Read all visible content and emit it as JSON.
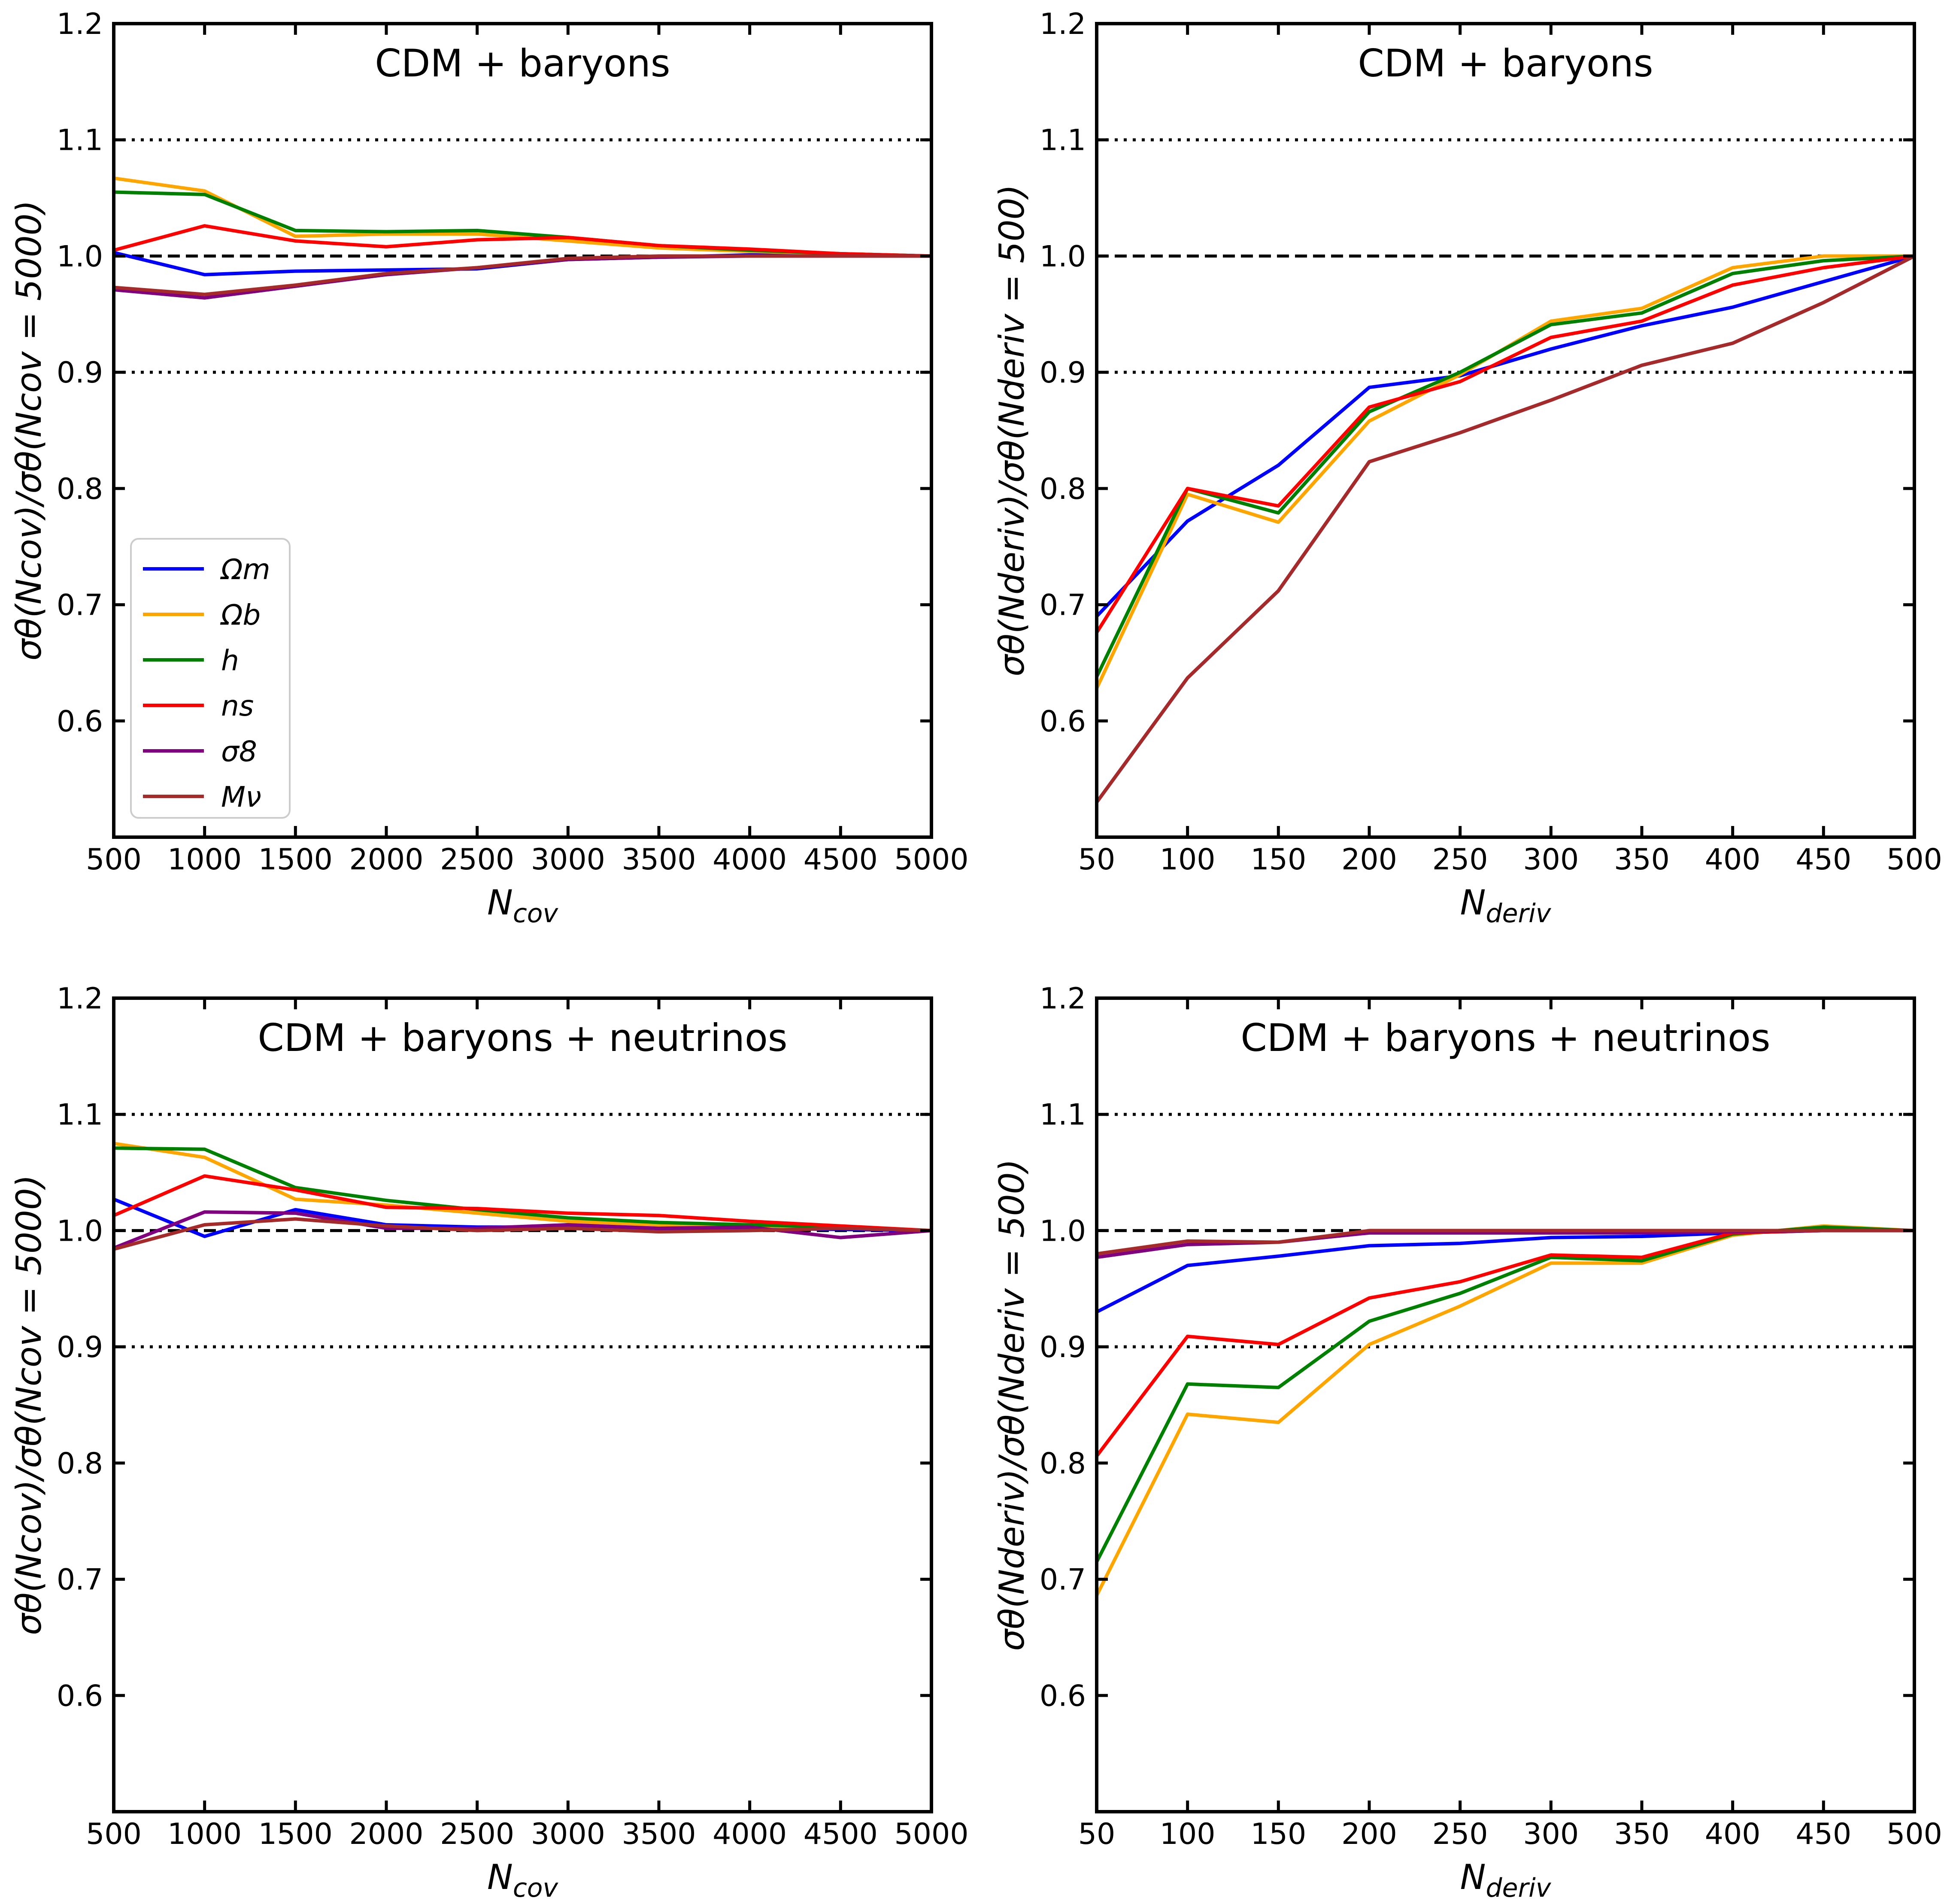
{
  "chart_data": [
    {
      "type": "line",
      "title": "CDM + baryons",
      "xlabel": "N_cov",
      "ylabel": "σθ(Ncov)/σθ(Ncov = 5000)",
      "xlabel_main": "N",
      "xlabel_sub": "cov",
      "ylabel_text": "σθ(Ncov)/σθ(Ncov = 5000)",
      "x": [
        500,
        1000,
        1500,
        2000,
        2500,
        3000,
        3500,
        4000,
        4500,
        5000
      ],
      "xlim": [
        500,
        5000
      ],
      "ylim": [
        0.5,
        1.2
      ],
      "xticks": [
        "500",
        "1000",
        "1500",
        "2000",
        "2500",
        "3000",
        "3500",
        "4000",
        "4500",
        "5000"
      ],
      "yticks": [
        "0.6",
        "0.7",
        "0.8",
        "0.9",
        "1.0",
        "1.1",
        "1.2"
      ],
      "reference_lines": {
        "dashed": 1.0,
        "dotted": [
          0.9,
          1.1
        ]
      },
      "legend": {
        "show": true,
        "position": "lower-left"
      },
      "series": [
        {
          "name": "Ωm",
          "color": "#0000ff",
          "values": [
            1.003,
            0.984,
            0.987,
            0.988,
            0.989,
            0.997,
            0.999,
            1.001,
            1.001,
            1.0
          ]
        },
        {
          "name": "Ωb",
          "color": "#ffa500",
          "values": [
            1.067,
            1.056,
            1.017,
            1.019,
            1.019,
            1.013,
            1.007,
            1.004,
            1.002,
            1.0
          ]
        },
        {
          "name": "h",
          "color": "#008000",
          "values": [
            1.055,
            1.053,
            1.022,
            1.021,
            1.022,
            1.016,
            1.009,
            1.005,
            1.002,
            1.0
          ]
        },
        {
          "name": "ns",
          "color": "#ff0000",
          "values": [
            1.005,
            1.026,
            1.013,
            1.008,
            1.014,
            1.016,
            1.009,
            1.006,
            1.002,
            1.0
          ]
        },
        {
          "name": "σ8",
          "color": "#800080",
          "values": [
            0.971,
            0.964,
            0.974,
            0.984,
            0.99,
            0.997,
            0.999,
            1.0,
            1.0,
            1.0
          ]
        },
        {
          "name": "Mν",
          "color": "#a52a2a",
          "values": [
            0.973,
            0.967,
            0.975,
            0.985,
            0.99,
            0.998,
            1.0,
            1.0,
            1.0,
            1.0
          ]
        }
      ]
    },
    {
      "type": "line",
      "title": "CDM + baryons",
      "xlabel": "N_deriv",
      "ylabel": "σθ(Nderiv)/σθ(Nderiv = 500)",
      "xlabel_main": "N",
      "xlabel_sub": "deriv",
      "ylabel_text": "σθ(Nderiv)/σθ(Nderiv = 500)",
      "x": [
        50,
        100,
        150,
        200,
        250,
        300,
        350,
        400,
        450,
        500
      ],
      "xlim": [
        50,
        500
      ],
      "ylim": [
        0.5,
        1.2
      ],
      "xticks": [
        "50",
        "100",
        "150",
        "200",
        "250",
        "300",
        "350",
        "400",
        "450",
        "500"
      ],
      "yticks": [
        "0.6",
        "0.7",
        "0.8",
        "0.9",
        "1.0",
        "1.1",
        "1.2"
      ],
      "reference_lines": {
        "dashed": 1.0,
        "dotted": [
          0.9,
          1.1
        ]
      },
      "legend": {
        "show": false
      },
      "series": [
        {
          "name": "Ωm",
          "color": "#0000ff",
          "values": [
            0.69,
            0.772,
            0.82,
            0.887,
            0.897,
            0.92,
            0.94,
            0.956,
            0.978,
            1.0
          ]
        },
        {
          "name": "Ωb",
          "color": "#ffa500",
          "values": [
            0.628,
            0.795,
            0.771,
            0.858,
            0.898,
            0.944,
            0.955,
            0.99,
            1.0,
            1.0
          ]
        },
        {
          "name": "h",
          "color": "#008000",
          "values": [
            0.638,
            0.8,
            0.779,
            0.866,
            0.9,
            0.941,
            0.951,
            0.985,
            0.996,
            1.0
          ]
        },
        {
          "name": "ns",
          "color": "#ff0000",
          "values": [
            0.676,
            0.8,
            0.785,
            0.87,
            0.892,
            0.93,
            0.944,
            0.975,
            0.99,
            1.0
          ]
        },
        {
          "name": "σ8",
          "color": "#800080",
          "values": [
            0.53,
            0.637,
            0.712,
            0.823,
            0.848,
            0.876,
            0.906,
            0.925,
            0.96,
            1.0
          ]
        },
        {
          "name": "Mν",
          "color": "#a52a2a",
          "values": [
            0.53,
            0.637,
            0.712,
            0.823,
            0.848,
            0.876,
            0.906,
            0.925,
            0.96,
            1.0
          ]
        }
      ]
    },
    {
      "type": "line",
      "title": "CDM + baryons + neutrinos",
      "xlabel": "N_cov",
      "ylabel": "σθ(Ncov)/σθ(Ncov = 5000)",
      "xlabel_main": "N",
      "xlabel_sub": "cov",
      "ylabel_text": "σθ(Ncov)/σθ(Ncov = 5000)",
      "x": [
        500,
        1000,
        1500,
        2000,
        2500,
        3000,
        3500,
        4000,
        4500,
        5000
      ],
      "xlim": [
        500,
        5000
      ],
      "ylim": [
        0.5,
        1.2
      ],
      "xticks": [
        "500",
        "1000",
        "1500",
        "2000",
        "2500",
        "3000",
        "3500",
        "4000",
        "4500",
        "5000"
      ],
      "yticks": [
        "0.6",
        "0.7",
        "0.8",
        "0.9",
        "1.0",
        "1.1",
        "1.2"
      ],
      "reference_lines": {
        "dashed": 1.0,
        "dotted": [
          0.9,
          1.1
        ]
      },
      "legend": {
        "show": false
      },
      "series": [
        {
          "name": "Ωm",
          "color": "#0000ff",
          "values": [
            1.027,
            0.995,
            1.018,
            1.005,
            1.003,
            1.003,
            1.002,
            1.002,
            1.001,
            1.0
          ]
        },
        {
          "name": "Ωb",
          "color": "#ffa500",
          "values": [
            1.075,
            1.063,
            1.027,
            1.022,
            1.015,
            1.008,
            1.005,
            1.004,
            1.003,
            1.0
          ]
        },
        {
          "name": "h",
          "color": "#008000",
          "values": [
            1.071,
            1.07,
            1.037,
            1.026,
            1.018,
            1.011,
            1.007,
            1.005,
            1.003,
            1.0
          ]
        },
        {
          "name": "ns",
          "color": "#ff0000",
          "values": [
            1.013,
            1.047,
            1.035,
            1.02,
            1.019,
            1.015,
            1.013,
            1.008,
            1.004,
            1.0
          ]
        },
        {
          "name": "σ8",
          "color": "#800080",
          "values": [
            0.985,
            1.016,
            1.015,
            1.002,
            1.002,
            1.005,
            1.002,
            1.003,
            0.994,
            1.0
          ]
        },
        {
          "name": "Mν",
          "color": "#a52a2a",
          "values": [
            0.984,
            1.005,
            1.01,
            1.004,
            1.0,
            1.002,
            0.999,
            1.0,
            1.002,
            1.0
          ]
        }
      ]
    },
    {
      "type": "line",
      "title": "CDM + baryons + neutrinos",
      "xlabel": "N_deriv",
      "ylabel": "σθ(Nderiv)/σθ(Nderiv = 500)",
      "xlabel_main": "N",
      "xlabel_sub": "deriv",
      "ylabel_text": "σθ(Nderiv)/σθ(Nderiv = 500)",
      "x": [
        50,
        100,
        150,
        200,
        250,
        300,
        350,
        400,
        450,
        500
      ],
      "xlim": [
        50,
        500
      ],
      "ylim": [
        0.5,
        1.2
      ],
      "xticks": [
        "50",
        "100",
        "150",
        "200",
        "250",
        "300",
        "350",
        "400",
        "450",
        "500"
      ],
      "yticks": [
        "0.6",
        "0.7",
        "0.8",
        "0.9",
        "1.0",
        "1.1",
        "1.2"
      ],
      "reference_lines": {
        "dashed": 1.0,
        "dotted": [
          0.9,
          1.1
        ]
      },
      "legend": {
        "show": false
      },
      "series": [
        {
          "name": "Ωm",
          "color": "#0000ff",
          "values": [
            0.93,
            0.97,
            0.978,
            0.987,
            0.989,
            0.994,
            0.995,
            0.998,
            1.0,
            1.0
          ]
        },
        {
          "name": "Ωb",
          "color": "#ffa500",
          "values": [
            0.686,
            0.842,
            0.835,
            0.902,
            0.935,
            0.972,
            0.972,
            0.996,
            1.004,
            1.0
          ]
        },
        {
          "name": "h",
          "color": "#008000",
          "values": [
            0.715,
            0.868,
            0.865,
            0.922,
            0.946,
            0.977,
            0.974,
            0.997,
            1.003,
            1.0
          ]
        },
        {
          "name": "ns",
          "color": "#ff0000",
          "values": [
            0.806,
            0.909,
            0.902,
            0.942,
            0.956,
            0.979,
            0.977,
            0.998,
            1.0,
            1.0
          ]
        },
        {
          "name": "σ8",
          "color": "#800080",
          "values": [
            0.977,
            0.988,
            0.99,
            0.998,
            0.998,
            0.998,
            0.998,
            0.999,
            1.0,
            1.0
          ]
        },
        {
          "name": "Mν",
          "color": "#a52a2a",
          "values": [
            0.98,
            0.991,
            0.99,
            1.0,
            1.0,
            1.0,
            1.0,
            1.0,
            1.0,
            1.0
          ]
        }
      ]
    }
  ]
}
